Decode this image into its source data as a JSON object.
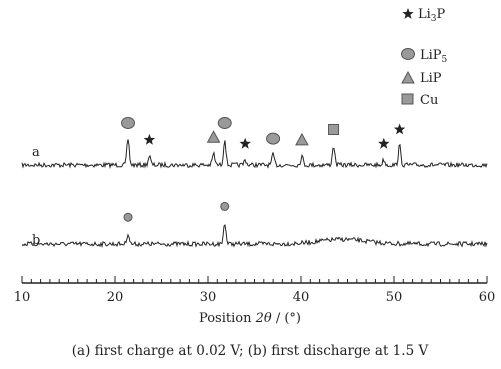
{
  "chart_data": {
    "type": "line",
    "xlabel_prefix": "Position ",
    "xlabel_var": "2θ",
    "xlabel_suffix": " / (°)",
    "xlim": [
      10,
      60
    ],
    "x_ticks": [
      10,
      20,
      30,
      40,
      50,
      60
    ],
    "caption": "(a) first charge at 0.02 V; (b) first discharge at 1.5 V",
    "legend": [
      {
        "marker": "star",
        "label": "Li",
        "sub": "3",
        "tail": "P"
      },
      {
        "marker": "circle",
        "label": "LiP",
        "sub": "5",
        "tail": ""
      },
      {
        "marker": "triangle",
        "label": "LiP",
        "sub": "",
        "tail": ""
      },
      {
        "marker": "square",
        "label": "Cu",
        "sub": "",
        "tail": ""
      }
    ],
    "series": [
      {
        "name": "a",
        "peaks": [
          {
            "x": 21.4,
            "h": 1.0,
            "marker": "circle"
          },
          {
            "x": 23.7,
            "h": 0.35,
            "marker": "star"
          },
          {
            "x": 30.6,
            "h": 0.45,
            "marker": "triangle"
          },
          {
            "x": 31.8,
            "h": 1.0,
            "marker": "circle"
          },
          {
            "x": 34.0,
            "h": 0.2,
            "marker": "star"
          },
          {
            "x": 37.0,
            "h": 0.4,
            "marker": "circle"
          },
          {
            "x": 40.1,
            "h": 0.35,
            "marker": "triangle"
          },
          {
            "x": 43.5,
            "h": 0.75,
            "marker": "square"
          },
          {
            "x": 48.9,
            "h": 0.2,
            "marker": "star"
          },
          {
            "x": 50.6,
            "h": 0.75,
            "marker": "star"
          }
        ],
        "humps": []
      },
      {
        "name": "b",
        "peaks": [
          {
            "x": 21.4,
            "h": 0.45,
            "marker": "circle"
          },
          {
            "x": 31.8,
            "h": 0.9,
            "marker": "circle"
          }
        ],
        "humps": [
          {
            "x": 44.5,
            "h": 0.55,
            "w": 3.5
          }
        ]
      }
    ]
  }
}
